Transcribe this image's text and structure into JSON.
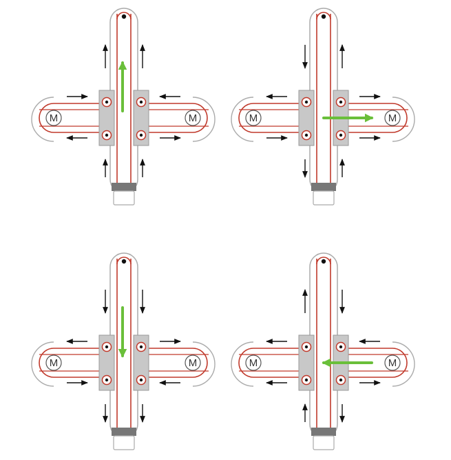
{
  "motor_label": "M",
  "colors": {
    "belt": "#c0392b",
    "frame": "#aaaaaa",
    "carriage": "#c8c8c8",
    "arrow": "#111111",
    "motion": "#6abf3a",
    "bar": "#777777"
  },
  "panels": [
    {
      "name": "panel-move-up",
      "motion": "up",
      "column_top_arrows": [
        "up",
        "up"
      ],
      "column_bottom_arrows": [
        "up",
        "up"
      ],
      "left_top_arrow": "right",
      "left_bottom_arrow": "left",
      "right_top_arrow": "left",
      "right_bottom_arrow": "right"
    },
    {
      "name": "panel-move-right",
      "motion": "right",
      "column_top_arrows": [
        "down",
        "up"
      ],
      "column_bottom_arrows": [
        "down",
        "up"
      ],
      "left_top_arrow": "left",
      "left_bottom_arrow": "right",
      "right_top_arrow": "right",
      "right_bottom_arrow": "right"
    },
    {
      "name": "panel-move-down",
      "motion": "down",
      "column_top_arrows": [
        "down",
        "down"
      ],
      "column_bottom_arrows": [
        "down",
        "down"
      ],
      "left_top_arrow": "left",
      "left_bottom_arrow": "right",
      "right_top_arrow": "right",
      "right_bottom_arrow": "left"
    },
    {
      "name": "panel-move-left",
      "motion": "left",
      "column_top_arrows": [
        "up",
        "down"
      ],
      "column_bottom_arrows": [
        "up",
        "down"
      ],
      "left_top_arrow": "left",
      "left_bottom_arrow": "left",
      "right_top_arrow": "left",
      "right_bottom_arrow": "right"
    }
  ]
}
